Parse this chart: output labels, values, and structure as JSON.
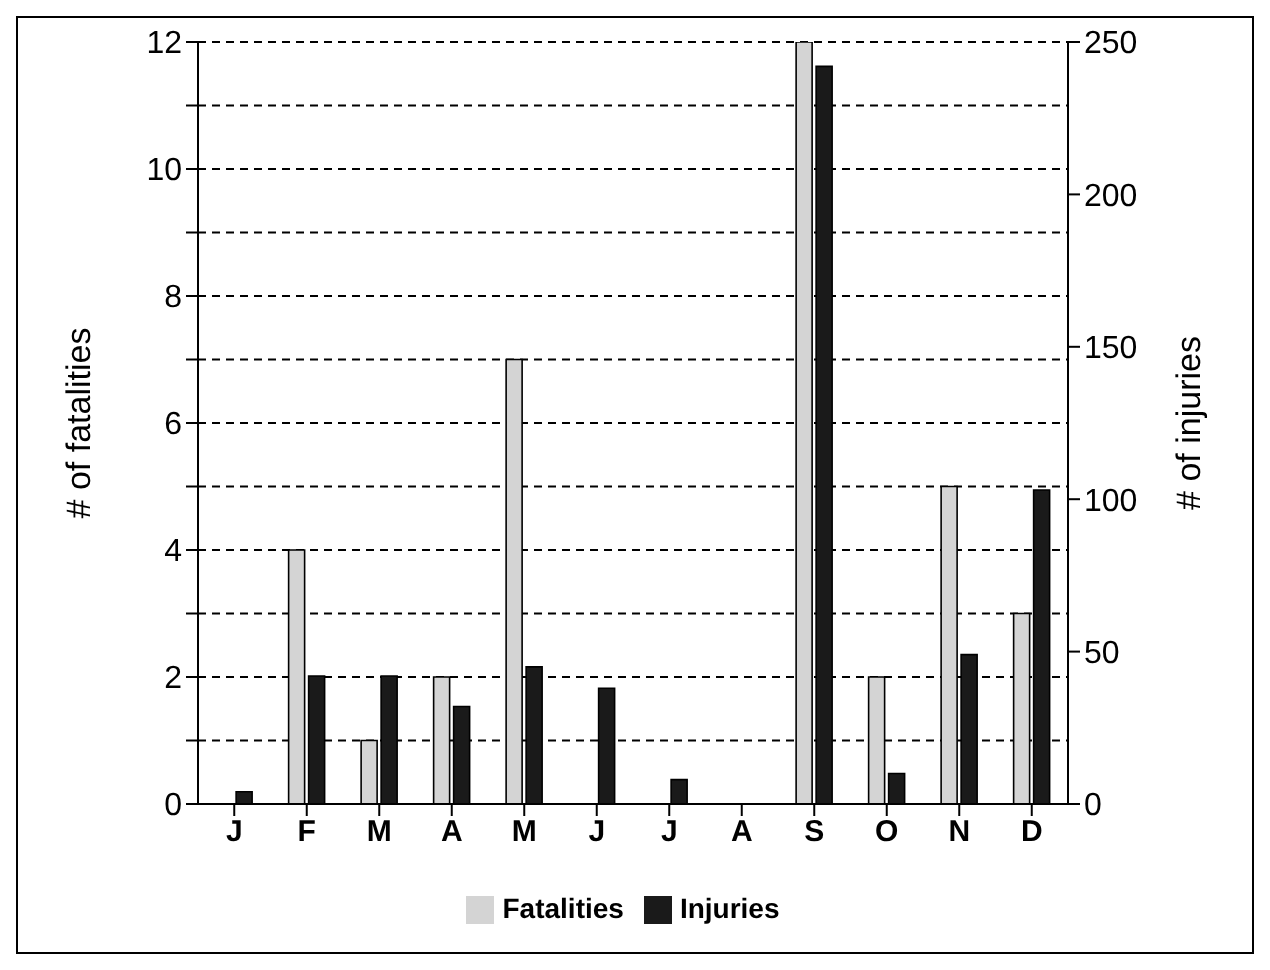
{
  "chart_data": {
    "type": "bar",
    "categories": [
      "J",
      "F",
      "M",
      "A",
      "M",
      "J",
      "J",
      "A",
      "S",
      "O",
      "N",
      "D"
    ],
    "series": [
      {
        "name": "Fatalities",
        "color": "#d4d4d4",
        "values": [
          0,
          4,
          1,
          2,
          7,
          0,
          0,
          0,
          12,
          2,
          5,
          3
        ]
      },
      {
        "name": "Injuries",
        "color": "#1a1a1a",
        "axis": "y2",
        "values": [
          4,
          42,
          42,
          32,
          45,
          38,
          8,
          0,
          242,
          10,
          49,
          103
        ]
      }
    ],
    "ylabel": "# of fatalities",
    "y2label": "# of injuries",
    "ylim": [
      0,
      12
    ],
    "yticks": [
      0,
      {
        "value": 1,
        "label": null
      },
      2,
      {
        "value": 3,
        "label": null
      },
      4,
      {
        "value": 5,
        "label": null
      },
      6,
      {
        "value": 7,
        "label": null
      },
      8,
      {
        "value": 9,
        "label": null
      },
      10,
      {
        "value": 11,
        "label": null
      },
      12
    ],
    "y2lim": [
      0,
      250
    ],
    "y2ticks": [
      0,
      50,
      100,
      150,
      200,
      250
    ],
    "grid": "y",
    "legend": "bottom"
  }
}
